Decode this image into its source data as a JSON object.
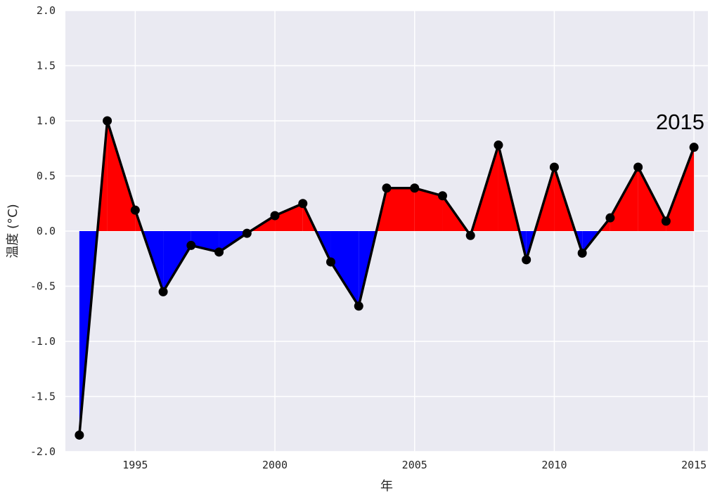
{
  "chart_data": {
    "type": "line",
    "title": "",
    "xlabel": "年",
    "ylabel": "温度 (°C)",
    "xlim": [
      1992.5,
      2015.5
    ],
    "ylim": [
      -2.0,
      2.0
    ],
    "x_ticks": [
      1995,
      2000,
      2005,
      2010,
      2015
    ],
    "x_tick_labels": [
      "1995",
      "2000",
      "2005",
      "2010",
      "2015"
    ],
    "y_ticks": [
      -2.0,
      -1.5,
      -1.0,
      -0.5,
      0.0,
      0.5,
      1.0,
      1.5,
      2.0
    ],
    "y_tick_labels": [
      "-2.0",
      "-1.5",
      "-1.0",
      "-0.5",
      "0.0",
      "0.5",
      "1.0",
      "1.5",
      "2.0"
    ],
    "grid": true,
    "baseline": 0.0,
    "fill_colors": {
      "above": "#ff0000",
      "below": "#0000ff"
    },
    "line_color": "#000000",
    "background": "#eaeaf2",
    "x": [
      1993,
      1994,
      1995,
      1996,
      1997,
      1998,
      1999,
      2000,
      2001,
      2002,
      2003,
      2004,
      2005,
      2006,
      2007,
      2008,
      2009,
      2010,
      2011,
      2012,
      2013,
      2014,
      2015
    ],
    "values": [
      -1.85,
      1.0,
      0.19,
      -0.55,
      -0.13,
      -0.19,
      -0.02,
      0.14,
      0.25,
      -0.28,
      -0.68,
      0.39,
      0.39,
      0.32,
      -0.04,
      0.78,
      -0.26,
      0.58,
      -0.2,
      0.12,
      0.58,
      0.09,
      0.76
    ],
    "annotation": {
      "text": "2015",
      "x": 2015,
      "y": 0.76
    }
  }
}
